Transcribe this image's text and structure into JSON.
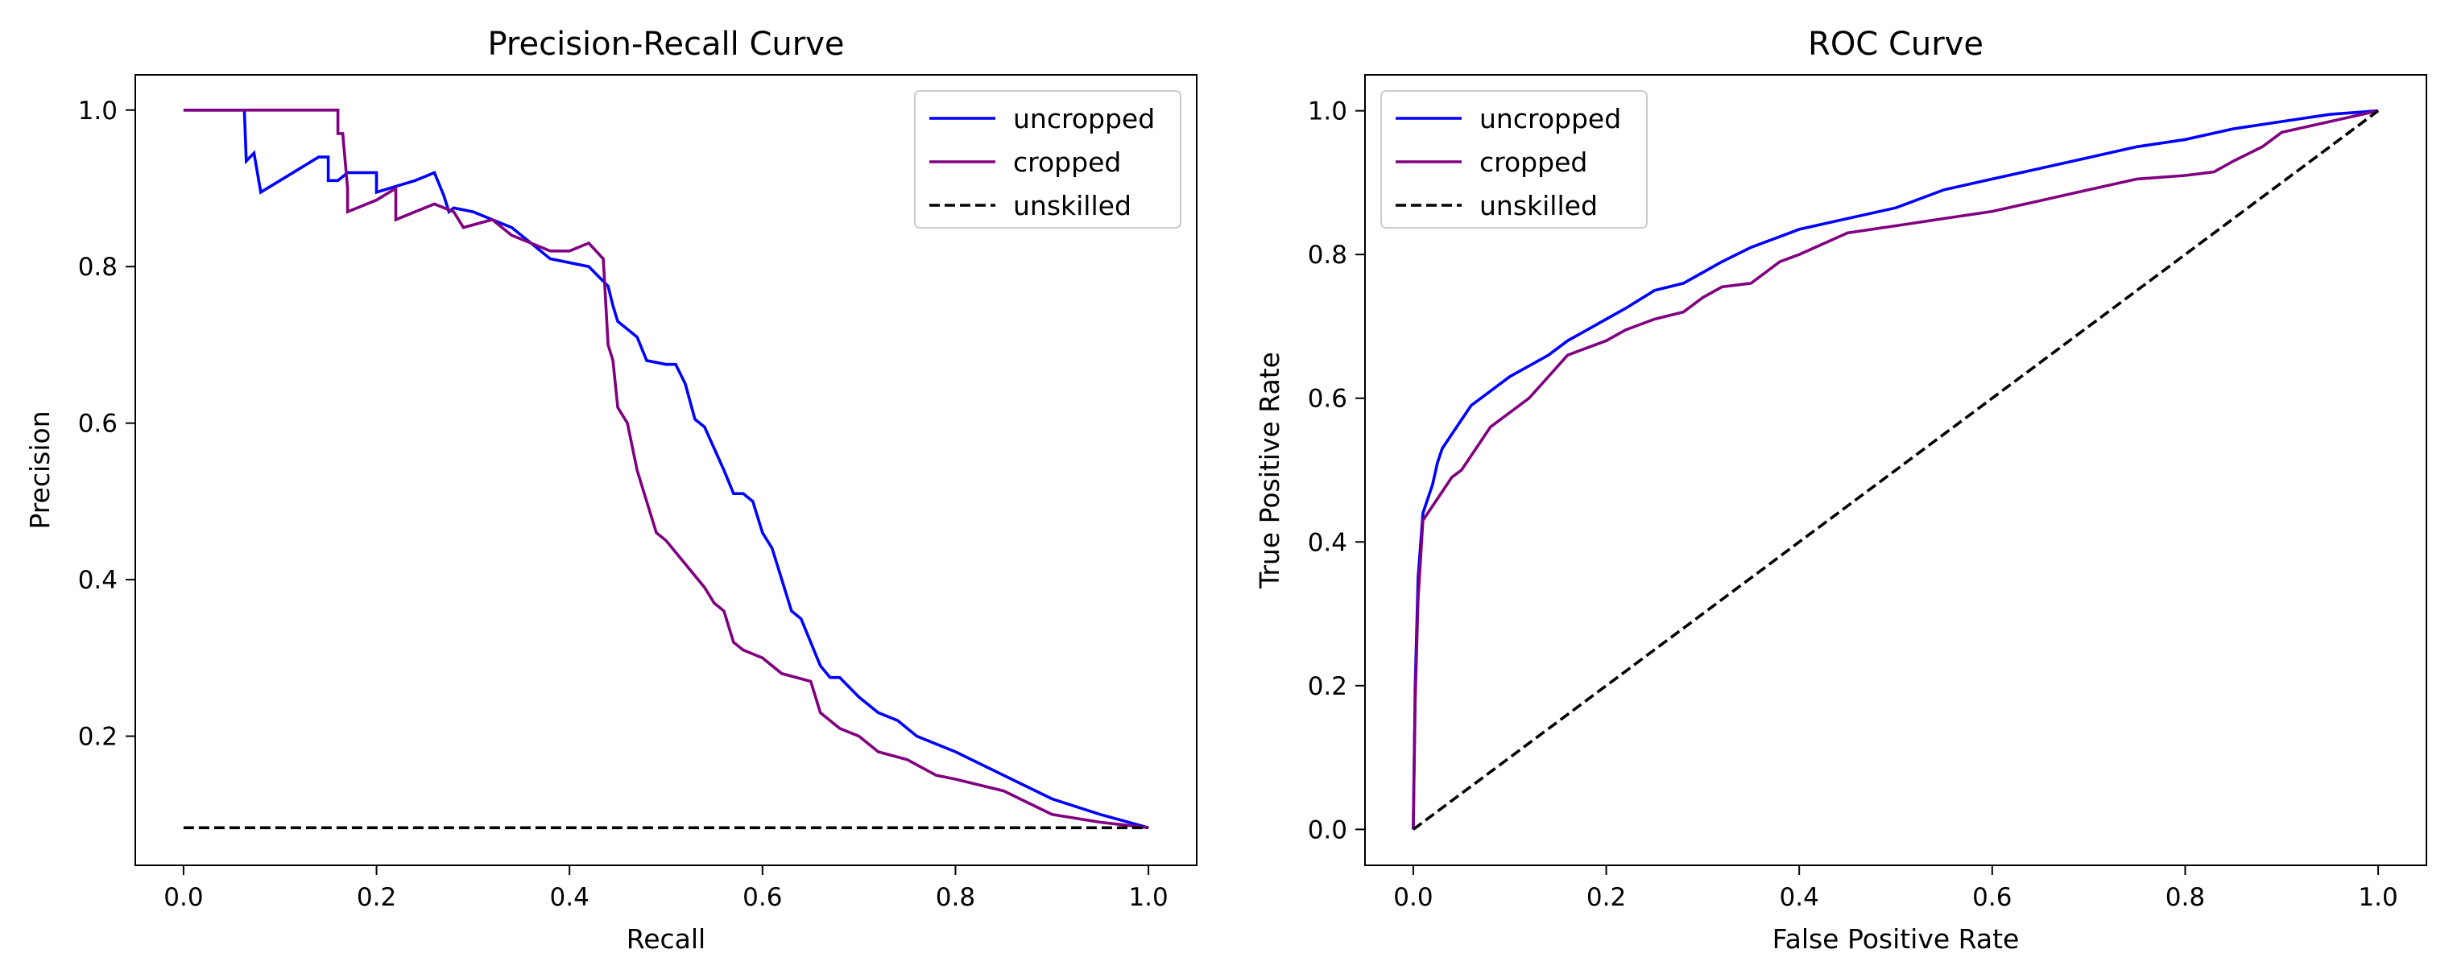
{
  "chart_data": [
    {
      "type": "line",
      "title": "Precision-Recall Curve",
      "xlabel": "Recall",
      "ylabel": "Precision",
      "xlim": [
        -0.05,
        1.05
      ],
      "ylim": [
        0.035,
        1.045
      ],
      "xticks": [
        0.0,
        0.2,
        0.4,
        0.6,
        0.8,
        1.0
      ],
      "xtick_labels": [
        "0.0",
        "0.2",
        "0.4",
        "0.6",
        "0.8",
        "1.0"
      ],
      "yticks": [
        0.2,
        0.4,
        0.6,
        0.8,
        1.0
      ],
      "ytick_labels": [
        "0.2",
        "0.4",
        "0.6",
        "0.8",
        "1.0"
      ],
      "legend_position": "top-right",
      "series": [
        {
          "name": "uncropped",
          "color": "#0000ff",
          "dashed": false,
          "x": [
            0.0,
            0.063,
            0.065,
            0.065,
            0.073,
            0.073,
            0.08,
            0.08,
            0.1,
            0.12,
            0.14,
            0.15,
            0.15,
            0.16,
            0.17,
            0.2,
            0.2,
            0.24,
            0.25,
            0.26,
            0.27,
            0.275,
            0.28,
            0.3,
            0.32,
            0.34,
            0.36,
            0.38,
            0.4,
            0.42,
            0.44,
            0.445,
            0.45,
            0.46,
            0.47,
            0.48,
            0.5,
            0.51,
            0.52,
            0.53,
            0.54,
            0.56,
            0.57,
            0.58,
            0.59,
            0.6,
            0.61,
            0.62,
            0.63,
            0.64,
            0.65,
            0.66,
            0.67,
            0.68,
            0.7,
            0.72,
            0.74,
            0.76,
            0.8,
            0.85,
            0.9,
            0.95,
            1.0
          ],
          "y": [
            1.0,
            1.0,
            0.935,
            0.935,
            0.945,
            0.945,
            0.895,
            0.895,
            0.91,
            0.925,
            0.94,
            0.94,
            0.91,
            0.91,
            0.92,
            0.92,
            0.895,
            0.91,
            0.915,
            0.92,
            0.89,
            0.87,
            0.875,
            0.87,
            0.86,
            0.85,
            0.83,
            0.81,
            0.805,
            0.8,
            0.775,
            0.75,
            0.73,
            0.72,
            0.71,
            0.68,
            0.675,
            0.675,
            0.65,
            0.605,
            0.595,
            0.54,
            0.51,
            0.51,
            0.5,
            0.46,
            0.44,
            0.4,
            0.36,
            0.35,
            0.32,
            0.29,
            0.275,
            0.275,
            0.25,
            0.23,
            0.22,
            0.2,
            0.18,
            0.15,
            0.12,
            0.1,
            0.083
          ]
        },
        {
          "name": "cropped",
          "color": "#800080",
          "dashed": false,
          "x": [
            0.0,
            0.16,
            0.16,
            0.165,
            0.17,
            0.17,
            0.2,
            0.22,
            0.22,
            0.24,
            0.26,
            0.28,
            0.29,
            0.32,
            0.34,
            0.36,
            0.38,
            0.4,
            0.42,
            0.435,
            0.44,
            0.445,
            0.45,
            0.46,
            0.47,
            0.48,
            0.49,
            0.5,
            0.52,
            0.54,
            0.55,
            0.56,
            0.57,
            0.58,
            0.6,
            0.62,
            0.65,
            0.66,
            0.68,
            0.7,
            0.72,
            0.75,
            0.78,
            0.8,
            0.85,
            0.9,
            0.95,
            1.0
          ],
          "y": [
            1.0,
            1.0,
            0.97,
            0.97,
            0.9,
            0.87,
            0.885,
            0.9,
            0.86,
            0.87,
            0.88,
            0.87,
            0.85,
            0.86,
            0.84,
            0.83,
            0.82,
            0.82,
            0.83,
            0.81,
            0.7,
            0.68,
            0.62,
            0.6,
            0.54,
            0.5,
            0.46,
            0.45,
            0.42,
            0.39,
            0.37,
            0.36,
            0.32,
            0.31,
            0.3,
            0.28,
            0.27,
            0.23,
            0.21,
            0.2,
            0.18,
            0.17,
            0.15,
            0.145,
            0.13,
            0.1,
            0.09,
            0.083
          ]
        },
        {
          "name": "unskilled",
          "color": "#000000",
          "dashed": true,
          "x": [
            0.0,
            1.0
          ],
          "y": [
            0.083,
            0.083
          ]
        }
      ]
    },
    {
      "type": "line",
      "title": "ROC Curve",
      "xlabel": "False Positive Rate",
      "ylabel": "True Positive Rate",
      "xlim": [
        -0.05,
        1.05
      ],
      "ylim": [
        -0.05,
        1.05
      ],
      "xticks": [
        0.0,
        0.2,
        0.4,
        0.6,
        0.8,
        1.0
      ],
      "xtick_labels": [
        "0.0",
        "0.2",
        "0.4",
        "0.6",
        "0.8",
        "1.0"
      ],
      "yticks": [
        0.0,
        0.2,
        0.4,
        0.6,
        0.8,
        1.0
      ],
      "ytick_labels": [
        "0.0",
        "0.2",
        "0.4",
        "0.6",
        "0.8",
        "1.0"
      ],
      "legend_position": "top-left",
      "series": [
        {
          "name": "uncropped",
          "color": "#0000ff",
          "dashed": false,
          "x": [
            0.0,
            0.002,
            0.005,
            0.01,
            0.015,
            0.02,
            0.025,
            0.03,
            0.04,
            0.05,
            0.06,
            0.08,
            0.1,
            0.12,
            0.14,
            0.16,
            0.18,
            0.2,
            0.22,
            0.25,
            0.28,
            0.3,
            0.32,
            0.35,
            0.38,
            0.4,
            0.45,
            0.5,
            0.55,
            0.6,
            0.65,
            0.7,
            0.75,
            0.8,
            0.85,
            0.9,
            0.95,
            1.0
          ],
          "y": [
            0.0,
            0.2,
            0.35,
            0.44,
            0.46,
            0.48,
            0.51,
            0.53,
            0.55,
            0.57,
            0.59,
            0.61,
            0.63,
            0.645,
            0.66,
            0.68,
            0.695,
            0.71,
            0.725,
            0.75,
            0.76,
            0.775,
            0.79,
            0.81,
            0.825,
            0.835,
            0.85,
            0.865,
            0.89,
            0.905,
            0.92,
            0.935,
            0.95,
            0.96,
            0.975,
            0.985,
            0.995,
            1.0
          ]
        },
        {
          "name": "cropped",
          "color": "#800080",
          "dashed": false,
          "x": [
            0.0,
            0.002,
            0.005,
            0.01,
            0.02,
            0.03,
            0.04,
            0.05,
            0.06,
            0.07,
            0.08,
            0.1,
            0.12,
            0.14,
            0.16,
            0.18,
            0.2,
            0.22,
            0.25,
            0.28,
            0.3,
            0.32,
            0.35,
            0.38,
            0.4,
            0.45,
            0.5,
            0.55,
            0.6,
            0.65,
            0.7,
            0.75,
            0.8,
            0.83,
            0.85,
            0.88,
            0.9,
            0.95,
            1.0
          ],
          "y": [
            0.0,
            0.18,
            0.32,
            0.43,
            0.45,
            0.47,
            0.49,
            0.5,
            0.52,
            0.54,
            0.56,
            0.58,
            0.6,
            0.63,
            0.66,
            0.67,
            0.68,
            0.695,
            0.71,
            0.72,
            0.74,
            0.755,
            0.76,
            0.79,
            0.8,
            0.83,
            0.84,
            0.85,
            0.86,
            0.875,
            0.89,
            0.905,
            0.91,
            0.915,
            0.93,
            0.95,
            0.97,
            0.985,
            1.0
          ]
        },
        {
          "name": "unskilled",
          "color": "#000000",
          "dashed": true,
          "x": [
            0.0,
            1.0
          ],
          "y": [
            0.0,
            1.0
          ]
        }
      ]
    }
  ]
}
